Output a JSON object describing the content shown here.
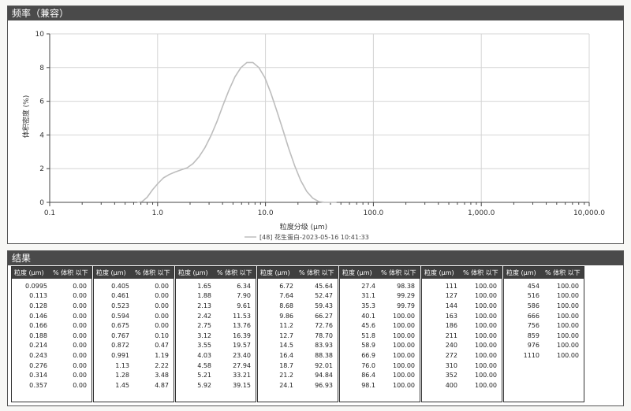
{
  "chart_panel": {
    "title": "频率（兼容）"
  },
  "results_panel": {
    "title": "结果"
  },
  "chart_data": {
    "type": "line",
    "x_scale": "log",
    "xlabel": "粒度分级 (μm)",
    "ylabel": "体积密度 (%)",
    "xlim": [
      0.1,
      10000
    ],
    "ylim": [
      0,
      10
    ],
    "x_ticks": [
      "0.1",
      "1.0",
      "10.0",
      "100.0",
      "1,000.0",
      "10,000.0"
    ],
    "y_ticks": [
      "0",
      "2",
      "4",
      "6",
      "8",
      "10"
    ],
    "grid": true,
    "legend": "bottom-center",
    "series": [
      {
        "name": "[48] 花生蛋白-2023-05-16 10:41:33",
        "color": "#bdbdbd",
        "x": [
          0.65,
          0.72,
          0.8,
          0.9,
          1.0,
          1.13,
          1.28,
          1.45,
          1.65,
          1.88,
          2.13,
          2.42,
          2.75,
          3.12,
          3.55,
          4.03,
          4.58,
          5.21,
          5.92,
          6.72,
          7.64,
          8.68,
          9.86,
          11.2,
          12.7,
          14.5,
          16.4,
          18.7,
          21.2,
          24.1,
          27.4,
          31.1,
          35.3,
          40.1,
          45.6
        ],
        "y": [
          0,
          0.05,
          0.3,
          0.75,
          1.1,
          1.45,
          1.65,
          1.8,
          1.93,
          2.05,
          2.3,
          2.7,
          3.25,
          3.95,
          4.8,
          5.75,
          6.65,
          7.45,
          8.0,
          8.3,
          8.3,
          8.0,
          7.4,
          6.5,
          5.45,
          4.3,
          3.2,
          2.15,
          1.3,
          0.65,
          0.25,
          0.05,
          0,
          0,
          0
        ]
      }
    ]
  },
  "results": {
    "col_header_size": "粒度 (μm)",
    "col_header_pct": "% 体积 以下",
    "columns": [
      [
        [
          "0.0995",
          "0.00"
        ],
        [
          "0.113",
          "0.00"
        ],
        [
          "0.128",
          "0.00"
        ],
        [
          "0.146",
          "0.00"
        ],
        [
          "0.166",
          "0.00"
        ],
        [
          "0.188",
          "0.00"
        ],
        [
          "0.214",
          "0.00"
        ],
        [
          "0.243",
          "0.00"
        ],
        [
          "0.276",
          "0.00"
        ],
        [
          "0.314",
          "0.00"
        ],
        [
          "0.357",
          "0.00"
        ]
      ],
      [
        [
          "0.405",
          "0.00"
        ],
        [
          "0.461",
          "0.00"
        ],
        [
          "0.523",
          "0.00"
        ],
        [
          "0.594",
          "0.00"
        ],
        [
          "0.675",
          "0.00"
        ],
        [
          "0.767",
          "0.10"
        ],
        [
          "0.872",
          "0.47"
        ],
        [
          "0.991",
          "1.19"
        ],
        [
          "1.13",
          "2.22"
        ],
        [
          "1.28",
          "3.48"
        ],
        [
          "1.45",
          "4.87"
        ]
      ],
      [
        [
          "1.65",
          "6.34"
        ],
        [
          "1.88",
          "7.90"
        ],
        [
          "2.13",
          "9.61"
        ],
        [
          "2.42",
          "11.53"
        ],
        [
          "2.75",
          "13.76"
        ],
        [
          "3.12",
          "16.39"
        ],
        [
          "3.55",
          "19.57"
        ],
        [
          "4.03",
          "23.40"
        ],
        [
          "4.58",
          "27.94"
        ],
        [
          "5.21",
          "33.21"
        ],
        [
          "5.92",
          "39.15"
        ]
      ],
      [
        [
          "6.72",
          "45.64"
        ],
        [
          "7.64",
          "52.47"
        ],
        [
          "8.68",
          "59.43"
        ],
        [
          "9.86",
          "66.27"
        ],
        [
          "11.2",
          "72.76"
        ],
        [
          "12.7",
          "78.70"
        ],
        [
          "14.5",
          "83.93"
        ],
        [
          "16.4",
          "88.38"
        ],
        [
          "18.7",
          "92.01"
        ],
        [
          "21.2",
          "94.84"
        ],
        [
          "24.1",
          "96.93"
        ]
      ],
      [
        [
          "27.4",
          "98.38"
        ],
        [
          "31.1",
          "99.29"
        ],
        [
          "35.3",
          "99.79"
        ],
        [
          "40.1",
          "100.00"
        ],
        [
          "45.6",
          "100.00"
        ],
        [
          "51.8",
          "100.00"
        ],
        [
          "58.9",
          "100.00"
        ],
        [
          "66.9",
          "100.00"
        ],
        [
          "76.0",
          "100.00"
        ],
        [
          "86.4",
          "100.00"
        ],
        [
          "98.1",
          "100.00"
        ]
      ],
      [
        [
          "111",
          "100.00"
        ],
        [
          "127",
          "100.00"
        ],
        [
          "144",
          "100.00"
        ],
        [
          "163",
          "100.00"
        ],
        [
          "186",
          "100.00"
        ],
        [
          "211",
          "100.00"
        ],
        [
          "240",
          "100.00"
        ],
        [
          "272",
          "100.00"
        ],
        [
          "310",
          "100.00"
        ],
        [
          "352",
          "100.00"
        ],
        [
          "400",
          "100.00"
        ]
      ],
      [
        [
          "454",
          "100.00"
        ],
        [
          "516",
          "100.00"
        ],
        [
          "586",
          "100.00"
        ],
        [
          "666",
          "100.00"
        ],
        [
          "756",
          "100.00"
        ],
        [
          "859",
          "100.00"
        ],
        [
          "976",
          "100.00"
        ],
        [
          "1110",
          "100.00"
        ]
      ]
    ]
  }
}
